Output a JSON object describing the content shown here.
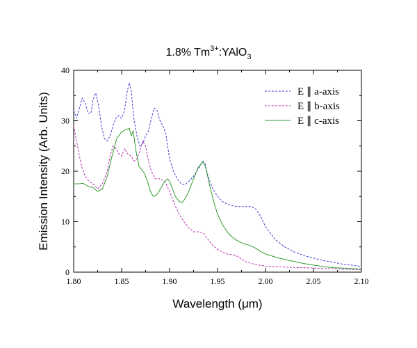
{
  "chart_data": {
    "type": "line",
    "title": {
      "main": "1.8% Tm",
      "sup": "3+",
      "mid": ":YAlO",
      "sub": "3"
    },
    "xlabel": "Wavelength (μm)",
    "ylabel": "Emission Intensity (Arb. Units)",
    "xlim": [
      1.8,
      2.1
    ],
    "ylim": [
      0,
      40
    ],
    "xticks": [
      "1.80",
      "1.85",
      "1.90",
      "1.95",
      "2.00",
      "2.05",
      "2.10"
    ],
    "yticks": [
      "0",
      "10",
      "20",
      "30",
      "40"
    ],
    "grid": false,
    "legend_position": "top-right",
    "series": [
      {
        "name": "E ∥ a-axis",
        "color": "#3b3bd6",
        "style": "dashed",
        "points": [
          [
            1.8,
            32.0
          ],
          [
            1.803,
            30.5
          ],
          [
            1.806,
            32.5
          ],
          [
            1.809,
            34.5
          ],
          [
            1.812,
            33.5
          ],
          [
            1.815,
            31.5
          ],
          [
            1.818,
            31.5
          ],
          [
            1.82,
            34.0
          ],
          [
            1.823,
            35.5
          ],
          [
            1.826,
            33.0
          ],
          [
            1.829,
            29.0
          ],
          [
            1.832,
            26.5
          ],
          [
            1.835,
            26.0
          ],
          [
            1.838,
            27.0
          ],
          [
            1.841,
            29.0
          ],
          [
            1.844,
            30.5
          ],
          [
            1.847,
            31.0
          ],
          [
            1.85,
            30.5
          ],
          [
            1.853,
            32.0
          ],
          [
            1.856,
            36.0
          ],
          [
            1.858,
            37.5
          ],
          [
            1.86,
            36.0
          ],
          [
            1.863,
            30.0
          ],
          [
            1.866,
            27.0
          ],
          [
            1.869,
            25.0
          ],
          [
            1.872,
            25.5
          ],
          [
            1.875,
            27.0
          ],
          [
            1.878,
            28.0
          ],
          [
            1.881,
            30.5
          ],
          [
            1.884,
            32.5
          ],
          [
            1.887,
            32.0
          ],
          [
            1.89,
            30.0
          ],
          [
            1.893,
            29.0
          ],
          [
            1.896,
            27.5
          ],
          [
            1.898,
            25.0
          ],
          [
            1.9,
            22.5
          ],
          [
            1.904,
            20.0
          ],
          [
            1.908,
            18.5
          ],
          [
            1.912,
            17.5
          ],
          [
            1.916,
            17.3
          ],
          [
            1.92,
            18.0
          ],
          [
            1.925,
            19.0
          ],
          [
            1.93,
            20.5
          ],
          [
            1.934,
            21.8
          ],
          [
            1.937,
            21.5
          ],
          [
            1.94,
            19.0
          ],
          [
            1.945,
            16.5
          ],
          [
            1.95,
            15.0
          ],
          [
            1.955,
            14.0
          ],
          [
            1.96,
            13.5
          ],
          [
            1.965,
            13.2
          ],
          [
            1.97,
            13.0
          ],
          [
            1.975,
            13.0
          ],
          [
            1.98,
            13.0
          ],
          [
            1.985,
            13.0
          ],
          [
            1.99,
            12.5
          ],
          [
            1.995,
            11.0
          ],
          [
            2.0,
            9.0
          ],
          [
            2.01,
            6.5
          ],
          [
            2.02,
            5.0
          ],
          [
            2.03,
            4.0
          ],
          [
            2.04,
            3.3
          ],
          [
            2.05,
            2.8
          ],
          [
            2.06,
            2.3
          ],
          [
            2.07,
            2.0
          ],
          [
            2.08,
            1.6
          ],
          [
            2.09,
            1.4
          ],
          [
            2.1,
            1.1
          ]
        ]
      },
      {
        "name": "E ∥ b-axis",
        "color": "#b32db3",
        "style": "dashed",
        "points": [
          [
            1.8,
            29.0
          ],
          [
            1.803,
            26.0
          ],
          [
            1.806,
            23.0
          ],
          [
            1.809,
            20.5
          ],
          [
            1.812,
            19.0
          ],
          [
            1.816,
            18.0
          ],
          [
            1.82,
            17.5
          ],
          [
            1.825,
            16.5
          ],
          [
            1.83,
            17.5
          ],
          [
            1.835,
            20.0
          ],
          [
            1.838,
            23.0
          ],
          [
            1.841,
            25.0
          ],
          [
            1.844,
            24.5
          ],
          [
            1.847,
            23.5
          ],
          [
            1.85,
            23.0
          ],
          [
            1.853,
            24.5
          ],
          [
            1.856,
            23.5
          ],
          [
            1.86,
            23.0
          ],
          [
            1.863,
            22.0
          ],
          [
            1.866,
            22.5
          ],
          [
            1.869,
            24.0
          ],
          [
            1.872,
            26.0
          ],
          [
            1.875,
            25.0
          ],
          [
            1.878,
            22.0
          ],
          [
            1.881,
            20.0
          ],
          [
            1.885,
            18.5
          ],
          [
            1.89,
            18.5
          ],
          [
            1.895,
            18.0
          ],
          [
            1.9,
            16.0
          ],
          [
            1.905,
            13.5
          ],
          [
            1.91,
            11.5
          ],
          [
            1.915,
            10.0
          ],
          [
            1.92,
            8.8
          ],
          [
            1.925,
            8.0
          ],
          [
            1.93,
            8.0
          ],
          [
            1.935,
            7.8
          ],
          [
            1.94,
            6.5
          ],
          [
            1.945,
            5.3
          ],
          [
            1.95,
            4.5
          ],
          [
            1.955,
            4.0
          ],
          [
            1.96,
            3.6
          ],
          [
            1.965,
            3.5
          ],
          [
            1.97,
            3.2
          ],
          [
            1.975,
            2.6
          ],
          [
            1.98,
            2.0
          ],
          [
            1.99,
            1.5
          ],
          [
            2.0,
            1.2
          ],
          [
            2.02,
            1.0
          ],
          [
            2.05,
            0.8
          ],
          [
            2.08,
            0.6
          ],
          [
            2.1,
            0.5
          ]
        ]
      },
      {
        "name": "E ∥ c-axis",
        "color": "#2f9a2f",
        "style": "solid",
        "points": [
          [
            1.8,
            17.5
          ],
          [
            1.805,
            17.5
          ],
          [
            1.81,
            17.6
          ],
          [
            1.815,
            17.0
          ],
          [
            1.82,
            16.8
          ],
          [
            1.825,
            16.0
          ],
          [
            1.83,
            16.5
          ],
          [
            1.835,
            19.0
          ],
          [
            1.84,
            23.0
          ],
          [
            1.845,
            26.5
          ],
          [
            1.85,
            27.8
          ],
          [
            1.855,
            28.3
          ],
          [
            1.858,
            28.5
          ],
          [
            1.86,
            27.0
          ],
          [
            1.862,
            28.0
          ],
          [
            1.865,
            24.0
          ],
          [
            1.868,
            21.0
          ],
          [
            1.871,
            20.3
          ],
          [
            1.874,
            19.5
          ],
          [
            1.877,
            18.0
          ],
          [
            1.88,
            16.0
          ],
          [
            1.883,
            15.0
          ],
          [
            1.886,
            15.2
          ],
          [
            1.889,
            16.0
          ],
          [
            1.892,
            17.0
          ],
          [
            1.895,
            18.0
          ],
          [
            1.898,
            18.5
          ],
          [
            1.9,
            18.0
          ],
          [
            1.903,
            16.5
          ],
          [
            1.906,
            15.0
          ],
          [
            1.91,
            14.0
          ],
          [
            1.913,
            13.8
          ],
          [
            1.916,
            14.5
          ],
          [
            1.92,
            16.0
          ],
          [
            1.925,
            18.5
          ],
          [
            1.93,
            20.8
          ],
          [
            1.935,
            22.0
          ],
          [
            1.938,
            20.5
          ],
          [
            1.942,
            17.0
          ],
          [
            1.946,
            14.0
          ],
          [
            1.95,
            11.5
          ],
          [
            1.955,
            9.5
          ],
          [
            1.96,
            8.0
          ],
          [
            1.965,
            7.0
          ],
          [
            1.97,
            6.3
          ],
          [
            1.975,
            5.8
          ],
          [
            1.98,
            5.5
          ],
          [
            1.985,
            5.2
          ],
          [
            1.99,
            4.7
          ],
          [
            1.995,
            4.1
          ],
          [
            2.0,
            3.6
          ],
          [
            2.01,
            3.0
          ],
          [
            2.02,
            2.5
          ],
          [
            2.03,
            2.1
          ],
          [
            2.04,
            1.7
          ],
          [
            2.05,
            1.4
          ],
          [
            2.06,
            1.1
          ],
          [
            2.07,
            0.9
          ],
          [
            2.08,
            0.8
          ],
          [
            2.09,
            0.7
          ],
          [
            2.1,
            0.6
          ]
        ]
      }
    ]
  }
}
